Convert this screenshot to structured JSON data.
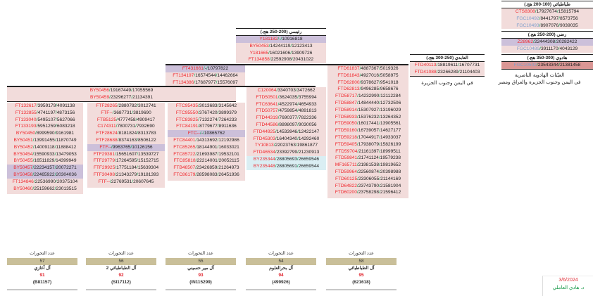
{
  "colors": {
    "row_bg": "#f2dcdb",
    "purple_bg": "#ccc0da",
    "blue_bg": "#daeef3",
    "dark_bg": "#da9694",
    "snp_red": "#f0282d",
    "snp_blue": "#7f9fcc",
    "slash_green": "#00a550",
    "count_bar": "#c9bf99"
  },
  "blocks": {
    "tabatabai": {
      "title": "طباطبائي (100-200 هج.)",
      "rows": [
        {
          "t": "CTS8308/17927674/15815794"
        },
        {
          "t": "FGC10492/8441797/8573756",
          "c": "bl"
        },
        {
          "t": "FGC10493/8907076/9039035",
          "c": "bl"
        }
      ]
    },
    "rizvi": {
      "title": "رضي (200-250 هج.)",
      "rows": [
        {
          "t": "Z28962/22444308/20282422",
          "s": "purple"
        },
        {
          "t": "FGC10489/3911170/4043129",
          "c": "bl"
        }
      ]
    },
    "hadawi": {
      "title": "هادوي (300-350 هج.)",
      "rows": [
        {
          "t": "FGC10502/23543344/21381458",
          "c": "bl",
          "s": "dark"
        }
      ]
    },
    "abadi": {
      "title": "العابدي (250-300 هج.)",
      "rows": [
        {
          "t": "FTD40113/18819611/16707731"
        },
        {
          "t": "FTD41088/23266289/21104403"
        }
      ]
    },
    "raisi": {
      "title": "رئيسي (200-250 هج.)",
      "rows": [
        {
          "t": "Y181182/-/10916818",
          "s": "purple"
        },
        {
          "t": "BY50453/14244119/12123413"
        },
        {
          "t": "Y181665/16021606/13909726"
        },
        {
          "t": "FT134858/22592908/20431022"
        }
      ]
    },
    "col3top": {
      "rows": [
        {
          "t": "FT431661/-/10797822",
          "s": "purple"
        },
        {
          "t": "FT134197/16574544/14462664"
        },
        {
          "t": "FT134386/17687977/15576097"
        }
      ]
    },
    "shared": {
      "rows": [
        {
          "t": "BY50456/19167449/17055569"
        },
        {
          "t": "BY50459/23296277/21134391"
        }
      ]
    },
    "col1": {
      "rows": [
        {
          "t": "FT132617/3959179/4091138"
        },
        {
          "t": "FT132855/4741197/4873156"
        },
        {
          "t": "FT133040/5495107/5627066"
        },
        {
          "t": "FT133193/5951259/6083218"
        },
        {
          "t": "BY50450/8999590/9161981"
        },
        {
          "t": "BY50451/13991455/11870749"
        },
        {
          "t": "BY50452/14009118/11888412"
        },
        {
          "t": "BY50454/15590933/13479053"
        },
        {
          "t": "BY50455/16511829/14399949"
        },
        {
          "t": "BY50457/22234157/20072271",
          "s": "purple"
        },
        {
          "t": "BY50458/22465922/20304036",
          "s": "purple"
        },
        {
          "t": "FT134846/22536990/20375104"
        },
        {
          "t": "BY50460/25159662/23013515"
        }
      ]
    },
    "col2": {
      "rows": [
        {
          "t": "FTF28265/2880782/3012741"
        },
        {
          "t": "FTF--/3687731/3819690"
        },
        {
          "t": "FTB5125/4777458/4909417"
        },
        {
          "t": "C174311/7800731/7932690"
        },
        {
          "t": "FTF28624/8181824/8313783"
        },
        {
          "t": "FTF28688/8374163/8506122"
        },
        {
          "t": "FTF--/9963765/10126156",
          "s": "purple"
        },
        {
          "t": "FTF29381/15651607/13539727"
        },
        {
          "t": "FTF29779/17264595/15152715"
        },
        {
          "t": "FTF29925/17751184/15639304"
        },
        {
          "t": "FTF30498/21343279/19181393"
        },
        {
          "t": "FTF--/22769531/20607645"
        }
      ]
    },
    "col3": {
      "rows": [
        {
          "t": "FTC95435/3013683/3145642"
        },
        {
          "t": "FTC95550/3767420/3899379"
        },
        {
          "t": "FTC83825/7132274/7264233"
        },
        {
          "t": "FTC84191/8779677/8911636"
        },
        {
          "t": "FTC--/-/10865762",
          "s": "purple"
        },
        {
          "t": "FTC84401/14313692/12192986"
        },
        {
          "t": "FTC85265/18144901/16033021"
        },
        {
          "t": "FTC85722/21693987/19532101"
        },
        {
          "t": "FTC85818/22214001/20052115"
        },
        {
          "t": "FTB46507/23426859/21264973"
        },
        {
          "t": "FTC86179/28598083/26451936"
        }
      ]
    },
    "col4": {
      "rows": [
        {
          "t": "C120064/3340703/3472662"
        },
        {
          "t": "FTD50501/3624035/3755994"
        },
        {
          "t": "FTC63641/4522974/4654933"
        },
        {
          "t": "FTD50757/4759854/4891813"
        },
        {
          "t": "FTD44319/7690377/7822336"
        },
        {
          "t": "FTD44586/8898097/9030056"
        },
        {
          "t": "FTD44925/14533946/12422147"
        },
        {
          "t": "FTD45303/16404340/14292460"
        },
        {
          "t": "TY10813/22023763/19861877"
        },
        {
          "t": "FTD46534/23392799/21230913"
        },
        {
          "t": "BY235344/28805693/26659546",
          "s": "blue"
        },
        {
          "t": "BY235448/28805691/26659544",
          "s": "blue"
        }
      ]
    },
    "col5": {
      "rows": [
        {
          "t": "FTD61837/4887367/5019326"
        },
        {
          "t": "FTD61843/4927016/5058975"
        },
        {
          "t": "FTD62800/9378627/9541018"
        },
        {
          "t": "FTD62813/9496285/9658676"
        },
        {
          "t": "FTD58717/14232990/12112284"
        },
        {
          "t": "FTD58847/14844440/12732506"
        },
        {
          "t": "FTD58914/15307927/13196029"
        },
        {
          "t": "FTD58933/15376232/13264352"
        },
        {
          "t": "FTD59050/16017441/13905561"
        },
        {
          "t": "FTD59160/16739057/14627177"
        },
        {
          "t": "FTD59218/17044917/14933037"
        },
        {
          "t": "FTD59405/17938079/15826199"
        },
        {
          "t": "FTD59704/21161397/18999511"
        },
        {
          "t": "FTD59841/21741124/19579238"
        },
        {
          "t": "MF165711/21981538/19819652"
        },
        {
          "t": "FTD59964/22560874/20398988"
        },
        {
          "t": "FTD60125/23306055/21144169"
        },
        {
          "t": "FTD64822/23743790/21581904"
        },
        {
          "t": "FTD60200/23758298/21596412"
        }
      ]
    }
  },
  "captions": {
    "hadawi_line1": "العيّنات الهادوية الناصرية",
    "hadawi_line2": "في اليمن وجنوب الجزيرة والعراق ومصر",
    "abadi_line1": "في اليمن وجنوب الجزيرة"
  },
  "cards": [
    {
      "label": "عدد التحورات",
      "count": "57",
      "family": "آل آغازي",
      "number": "91",
      "code": "(B81157)"
    },
    {
      "label": "عدد التحورات",
      "count": "56",
      "family": "آل الطباطبائي 2",
      "number": "92",
      "code": "(SI17112)"
    },
    {
      "label": "عدد التحورات",
      "count": "55",
      "family": "آل مير حسيني",
      "number": "93",
      "code": "(IN115299)"
    },
    {
      "label": "عدد التحورات",
      "count": "54",
      "family": "آل بحرالعلوم",
      "number": "94",
      "code": "(499926)"
    },
    {
      "label": "عدد التحورات",
      "count": "58",
      "family": "آل الطباطبائي",
      "number": "95",
      "code": "(621618)"
    }
  ],
  "signature": {
    "date": "3/6/2024",
    "author": "د. هادي العاملي"
  }
}
